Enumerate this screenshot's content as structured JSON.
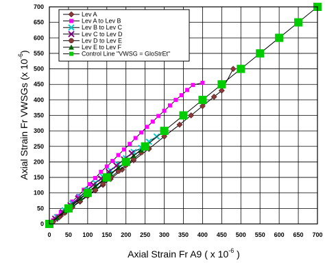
{
  "chart_data": {
    "type": "line",
    "title": "",
    "xlabel": "Axial Strain Fr A9 ( x 10",
    "xlabel_exp": "-6",
    "xlabel_end": " )",
    "ylabel": "Axial Strain Fr VWSGs (x 10",
    "ylabel_exp": "-6",
    "ylabel_end": ")",
    "xlim": [
      0,
      700
    ],
    "ylim": [
      0,
      700
    ],
    "xticks": [
      0,
      50,
      100,
      150,
      200,
      250,
      300,
      350,
      400,
      450,
      500,
      550,
      600,
      650,
      700
    ],
    "yticks": [
      0,
      50,
      100,
      150,
      200,
      250,
      300,
      350,
      400,
      450,
      500,
      550,
      600,
      650,
      700
    ],
    "grid": true,
    "legend_position": "top-left",
    "series": [
      {
        "name": "Lev A",
        "color": "#8B3A3A",
        "marker": "diamond",
        "x": [
          0,
          10,
          20,
          30,
          40,
          50,
          60,
          80,
          100,
          120,
          140,
          160,
          190,
          220,
          260,
          300,
          340,
          370,
          400,
          430,
          450,
          480
        ],
        "y": [
          0,
          8,
          18,
          26,
          36,
          45,
          54,
          72,
          90,
          108,
          126,
          145,
          175,
          205,
          242,
          282,
          320,
          350,
          380,
          410,
          430,
          500
        ]
      },
      {
        "name": "Lev A to Lev B",
        "color": "#FF00FF",
        "marker": "square",
        "x": [
          10,
          20,
          30,
          45,
          60,
          75,
          90,
          105,
          120,
          135,
          150,
          165,
          180,
          195,
          210,
          225,
          240,
          255,
          270,
          285,
          300,
          315,
          330,
          345,
          360,
          375,
          400
        ],
        "y": [
          12,
          25,
          38,
          55,
          72,
          90,
          110,
          128,
          148,
          168,
          185,
          203,
          222,
          240,
          258,
          277,
          295,
          313,
          330,
          348,
          365,
          382,
          400,
          415,
          432,
          448,
          455
        ]
      },
      {
        "name": "Lev B to Lev C",
        "color": "#00CCCC",
        "marker": "x",
        "x": [
          20,
          40,
          60,
          80,
          100,
          120,
          140,
          160,
          180,
          200,
          220,
          240,
          260,
          280
        ],
        "y": [
          22,
          44,
          66,
          88,
          110,
          132,
          152,
          172,
          192,
          212,
          232,
          245,
          265,
          282
        ]
      },
      {
        "name": "Lev C to Lev D",
        "color": "#800080",
        "marker": "x",
        "x": [
          15,
          35,
          55,
          75,
          95,
          115,
          135,
          155,
          175,
          195,
          215
        ],
        "y": [
          17,
          38,
          60,
          82,
          104,
          126,
          146,
          168,
          188,
          208,
          228
        ]
      },
      {
        "name": "Lev D to Lev E",
        "color": "#8B3A3A",
        "marker": "circle",
        "x": [
          10,
          25,
          40,
          60,
          80,
          100,
          120,
          140,
          160,
          180,
          200,
          220,
          240
        ],
        "y": [
          8,
          22,
          36,
          55,
          75,
          92,
          110,
          130,
          150,
          170,
          190,
          210,
          230
        ]
      },
      {
        "name": "Lev E to Lev F",
        "color": "#006400",
        "marker": "triangle",
        "x": [
          20,
          40,
          60,
          80,
          100,
          120,
          140,
          160,
          180,
          200,
          220,
          240
        ],
        "y": [
          20,
          42,
          62,
          82,
          102,
          122,
          142,
          162,
          182,
          200,
          220,
          238
        ]
      },
      {
        "name": "Control Line \"VWSG = GloStrEt\"",
        "color": "#00CC00",
        "marker": "bigsquare",
        "x": [
          0,
          50,
          100,
          150,
          200,
          250,
          300,
          350,
          400,
          450,
          500,
          550,
          600,
          650,
          700
        ],
        "y": [
          0,
          50,
          100,
          150,
          200,
          250,
          300,
          350,
          400,
          450,
          500,
          550,
          600,
          650,
          700
        ]
      }
    ]
  }
}
